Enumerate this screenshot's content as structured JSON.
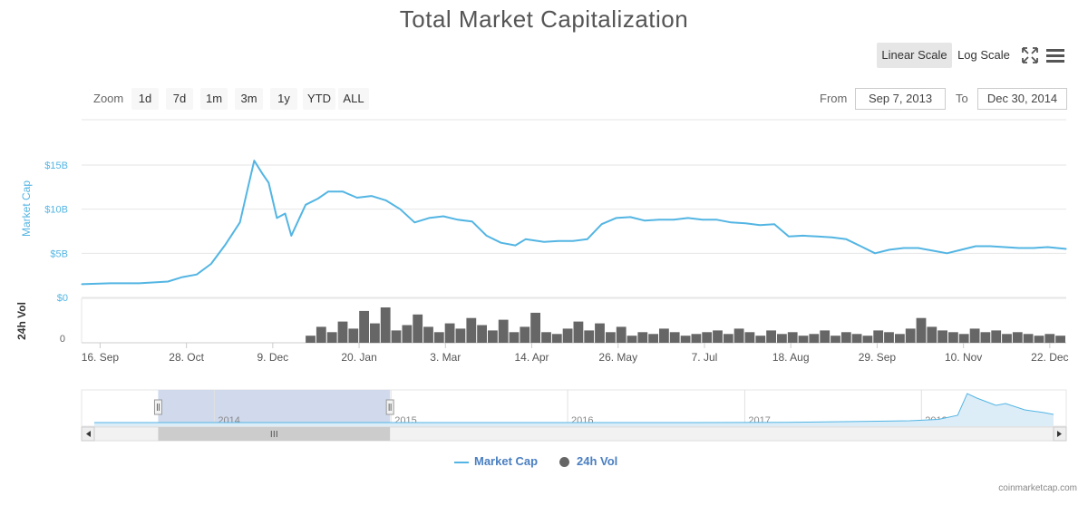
{
  "title": "Total Market Capitalization",
  "toolbar": {
    "linear_label": "Linear Scale",
    "log_label": "Log Scale",
    "fullscreen_icon": "fullscreen-icon",
    "menu_icon": "hamburger-menu-icon"
  },
  "zoom": {
    "label": "Zoom",
    "buttons": [
      "1d",
      "7d",
      "1m",
      "3m",
      "1y",
      "YTD",
      "ALL"
    ]
  },
  "range": {
    "from_label": "From",
    "from_value": "Sep 7, 2013",
    "to_label": "To",
    "to_value": "Dec 30, 2014"
  },
  "colors": {
    "line": "#53b5e3",
    "bars": "#666666",
    "navigator_mask": "#c9d3ea",
    "legend_text": "#4a7fc1"
  },
  "legend": {
    "market_cap": "Market Cap",
    "volume": "24h Vol"
  },
  "credits": "coinmarketcap.com",
  "chart_data": {
    "type": "line",
    "title": "Total Market Capitalization",
    "ylabel": "Market Cap",
    "y_scale": "linear",
    "ylim": [
      0,
      15
    ],
    "y_unit": "B USD",
    "y_ticks": [
      "$0",
      "$5B",
      "$10B",
      "$15B"
    ],
    "volume_axis_label": "24h Vol",
    "volume_ticks": [
      "0"
    ],
    "x_ticks": [
      "16. Sep",
      "28. Oct",
      "9. Dec",
      "20. Jan",
      "3. Mar",
      "14. Apr",
      "26. May",
      "7. Jul",
      "18. Aug",
      "29. Sep",
      "10. Nov",
      "22. Dec"
    ],
    "x_range": [
      "2013-09-07",
      "2014-12-30"
    ],
    "navigator_ticks": [
      "2014",
      "2015",
      "2016",
      "2017",
      "2018"
    ],
    "grid": true,
    "legend_position": "bottom-center",
    "series": [
      {
        "name": "Market Cap",
        "x": [
          "2013-09-07",
          "2013-09-21",
          "2013-10-05",
          "2013-10-19",
          "2013-10-26",
          "2013-11-02",
          "2013-11-09",
          "2013-11-16",
          "2013-11-23",
          "2013-11-27",
          "2013-11-30",
          "2013-12-04",
          "2013-12-07",
          "2013-12-11",
          "2013-12-15",
          "2013-12-18",
          "2013-12-22",
          "2013-12-25",
          "2013-12-31",
          "2014-01-05",
          "2014-01-12",
          "2014-01-19",
          "2014-01-26",
          "2014-02-02",
          "2014-02-09",
          "2014-02-16",
          "2014-02-23",
          "2014-03-02",
          "2014-03-09",
          "2014-03-16",
          "2014-03-23",
          "2014-03-30",
          "2014-04-06",
          "2014-04-11",
          "2014-04-20",
          "2014-04-27",
          "2014-05-04",
          "2014-05-11",
          "2014-05-18",
          "2014-05-25",
          "2014-06-01",
          "2014-06-08",
          "2014-06-15",
          "2014-06-22",
          "2014-06-29",
          "2014-07-06",
          "2014-07-13",
          "2014-07-20",
          "2014-07-27",
          "2014-08-03",
          "2014-08-10",
          "2014-08-17",
          "2014-08-24",
          "2014-08-31",
          "2014-09-07",
          "2014-09-14",
          "2014-09-21",
          "2014-09-28",
          "2014-10-05",
          "2014-10-12",
          "2014-10-19",
          "2014-10-26",
          "2014-11-02",
          "2014-11-09",
          "2014-11-16",
          "2014-11-23",
          "2014-11-30",
          "2014-12-07",
          "2014-12-14",
          "2014-12-21",
          "2014-12-30"
        ],
        "values": [
          1.5,
          1.6,
          1.6,
          1.8,
          2.3,
          2.6,
          3.8,
          6.0,
          8.5,
          12.5,
          15.5,
          14.0,
          13.0,
          9.0,
          9.5,
          7.0,
          9.0,
          10.5,
          11.2,
          12.0,
          12.0,
          11.3,
          11.5,
          11.0,
          10.0,
          8.5,
          9.0,
          9.2,
          8.8,
          8.6,
          7.0,
          6.2,
          5.9,
          6.6,
          6.3,
          6.4,
          6.4,
          6.6,
          8.3,
          9.0,
          9.1,
          8.7,
          8.8,
          8.8,
          9.0,
          8.8,
          8.8,
          8.5,
          8.4,
          8.2,
          8.3,
          6.9,
          7.0,
          6.9,
          6.8,
          6.6,
          5.8,
          5.0,
          5.4,
          5.6,
          5.6,
          5.3,
          5.0,
          5.4,
          5.8,
          5.8,
          5.7,
          5.6,
          5.6,
          5.7,
          5.5
        ]
      },
      {
        "name": "24h Vol",
        "type": "bar",
        "values_relative": [
          0.2,
          0.45,
          0.3,
          0.6,
          0.4,
          0.9,
          0.55,
          1.0,
          0.35,
          0.5,
          0.8,
          0.45,
          0.3,
          0.55,
          0.4,
          0.7,
          0.5,
          0.35,
          0.65,
          0.3,
          0.45,
          0.85,
          0.3,
          0.25,
          0.4,
          0.6,
          0.35,
          0.55,
          0.3,
          0.45,
          0.2,
          0.3,
          0.25,
          0.4,
          0.3,
          0.2,
          0.25,
          0.3,
          0.35,
          0.25,
          0.4,
          0.3,
          0.2,
          0.35,
          0.25,
          0.3,
          0.2,
          0.25,
          0.35,
          0.2,
          0.3,
          0.25,
          0.2,
          0.35,
          0.3,
          0.25,
          0.4,
          0.7,
          0.45,
          0.35,
          0.3,
          0.25,
          0.4,
          0.3,
          0.35,
          0.25,
          0.3,
          0.25,
          0.2,
          0.25,
          0.2
        ]
      }
    ],
    "navigator": {
      "x_range": [
        "2013-04-28",
        "2018-10-01"
      ],
      "selected_range": [
        "2013-09-07",
        "2014-12-30"
      ]
    }
  }
}
